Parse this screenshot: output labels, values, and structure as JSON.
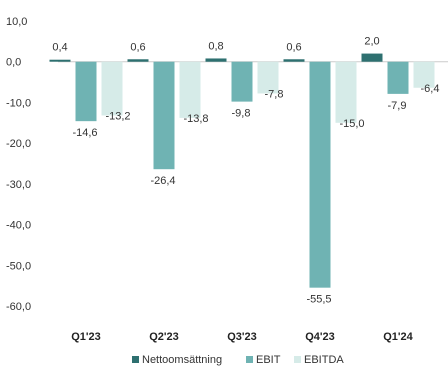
{
  "chart_data": {
    "type": "bar",
    "categories": [
      "Q1'23",
      "Q2'23",
      "Q3'23",
      "Q4'23",
      "Q1'24"
    ],
    "series": [
      {
        "name": "Nettoomsättning",
        "values": [
          0.4,
          0.6,
          0.8,
          0.6,
          2.0
        ],
        "labels": [
          "0,4",
          "0,6",
          "0,8",
          "0,6",
          "2,0"
        ],
        "color": "#2e7070"
      },
      {
        "name": "EBIT",
        "values": [
          -14.6,
          -26.4,
          -9.8,
          -55.5,
          -7.9
        ],
        "labels": [
          "-14,6",
          "-26,4",
          "-9,8",
          "-55,5",
          "-7,9"
        ],
        "color": "#6fb3b3"
      },
      {
        "name": "EBITDA",
        "values": [
          -13.2,
          -13.8,
          -7.8,
          -15.0,
          -6.4
        ],
        "labels": [
          "-13,2",
          "-13,8",
          "-7,8",
          "-15,0",
          "-6,4"
        ],
        "color": "#d6ebe8"
      }
    ],
    "ylim": [
      -60,
      10
    ],
    "yticks": [
      10,
      0,
      -10,
      -20,
      -30,
      -40,
      -50,
      -60
    ],
    "ytick_labels": [
      "10,0",
      "0,0",
      "-10,0",
      "-20,0",
      "-30,0",
      "-40,0",
      "-50,0",
      "-60,0"
    ],
    "legend_position": "bottom-center",
    "grid": false
  }
}
